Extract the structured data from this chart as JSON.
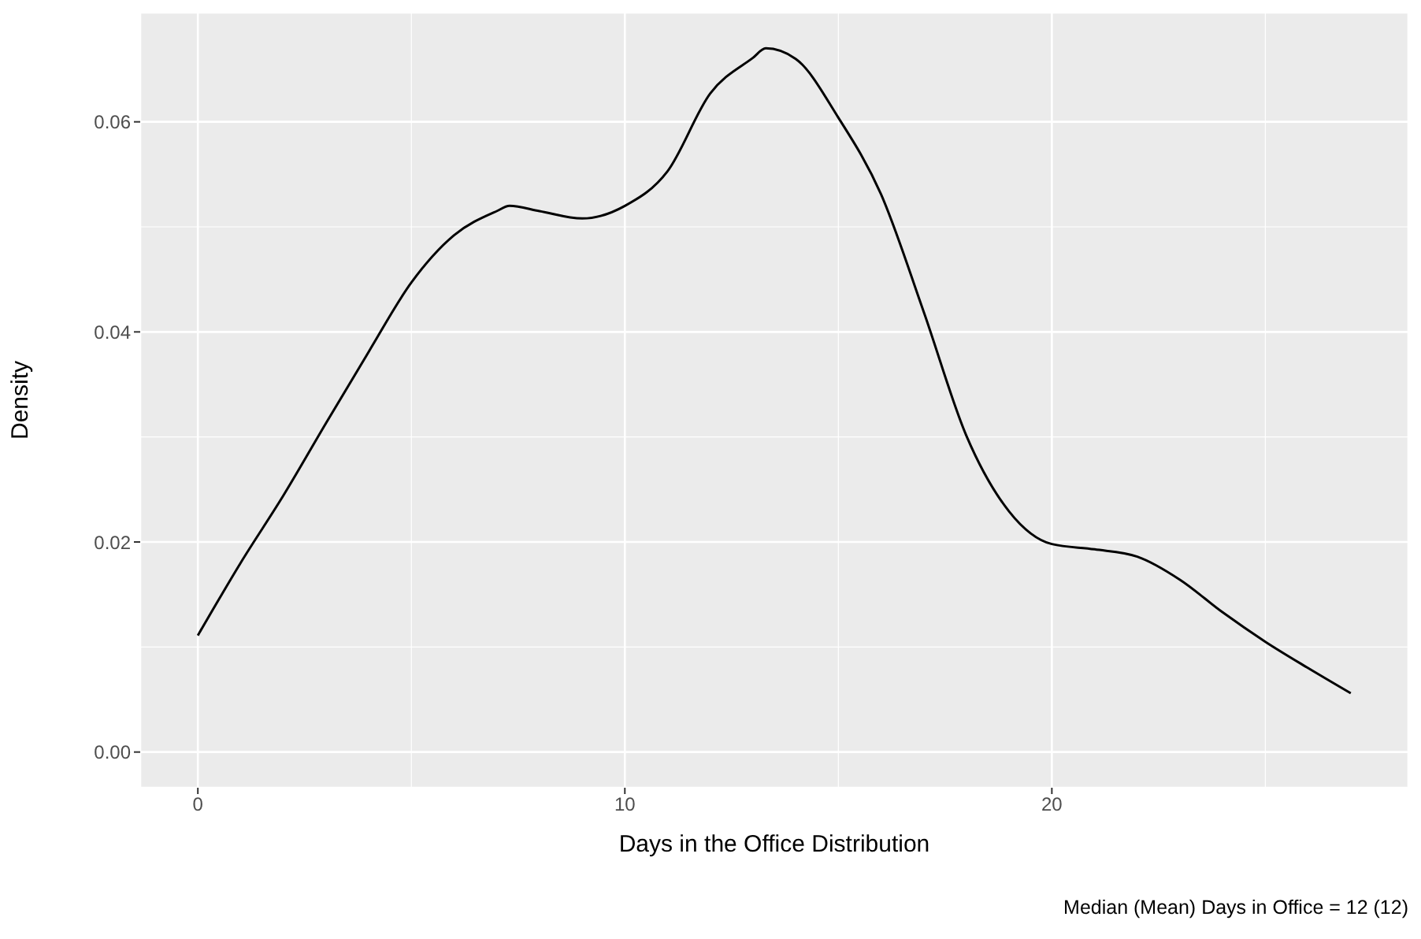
{
  "chart_data": {
    "type": "line",
    "xlabel": "Days in the Office Distribution",
    "ylabel": "Density",
    "annotations": [
      "Median (Mean) Days in Office = 12 (12)"
    ],
    "x": [
      0,
      1,
      2,
      3,
      4,
      5,
      6,
      7,
      7.3,
      8,
      9,
      10,
      11,
      12,
      13,
      13.3,
      14,
      15,
      16,
      17,
      18,
      19,
      20,
      21,
      22,
      23,
      24,
      25,
      26,
      27
    ],
    "series": [
      {
        "color": "#000000",
        "values": [
          0.0111,
          0.018,
          0.0244,
          0.0313,
          0.0381,
          0.0447,
          0.0492,
          0.0515,
          0.052,
          0.0515,
          0.0508,
          0.052,
          0.0553,
          0.0627,
          0.0661,
          0.067,
          0.066,
          0.0604,
          0.0531,
          0.0419,
          0.0301,
          0.0229,
          0.0198,
          0.0193,
          0.0186,
          0.0164,
          0.0133,
          0.0105,
          0.008,
          0.0056
        ]
      }
    ],
    "xlim": [
      -1.35,
      28.35
    ],
    "ylim": [
      -0.0034,
      0.0704
    ],
    "xticks": [
      0,
      10,
      20
    ],
    "yticks": [
      {
        "value": 0,
        "label": "0.00"
      },
      {
        "value": 0.02,
        "label": "0.02"
      },
      {
        "value": 0.04,
        "label": "0.04"
      },
      {
        "value": 0.06,
        "label": "0.06"
      }
    ],
    "grid": true,
    "marker": "none",
    "line_style": "solid"
  }
}
